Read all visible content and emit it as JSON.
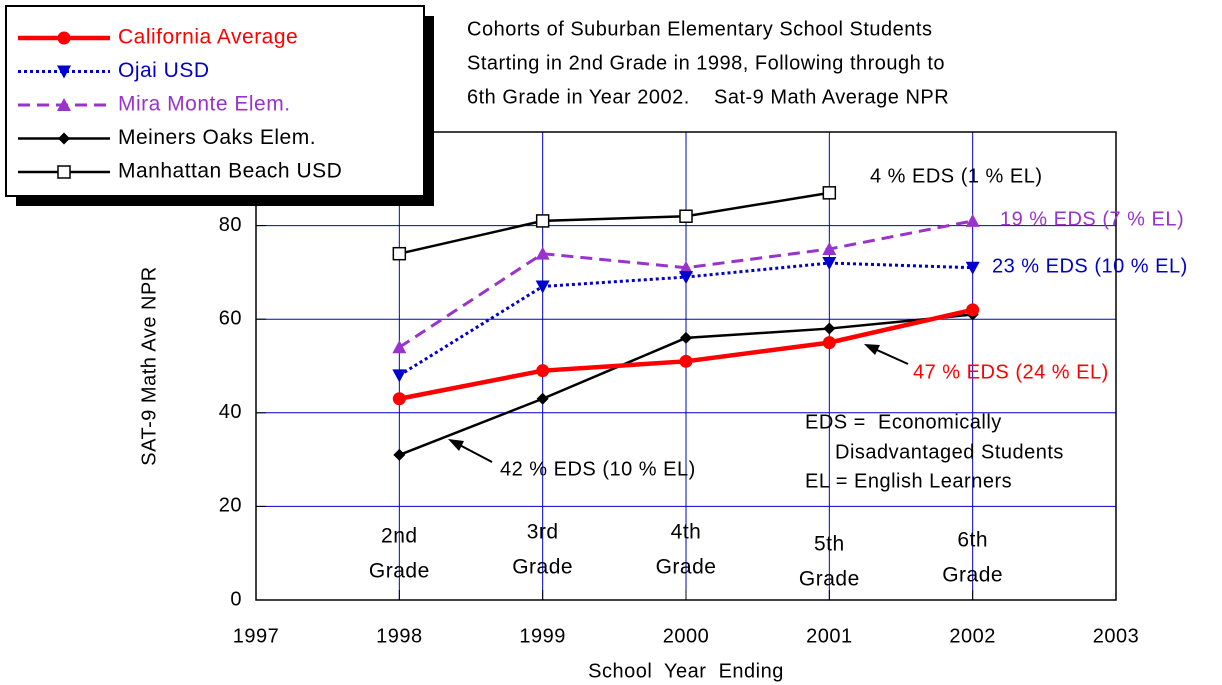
{
  "chart_data": {
    "type": "line",
    "title": [
      "Cohorts of Suburban Elementary School Students",
      "Starting in 2nd Grade in 1998, Following through to",
      "6th Grade in Year 2002.    Sat-9 Math Average NPR"
    ],
    "x_label": "School  Year  Ending",
    "y_label": "SAT-9 Math Ave NPR",
    "x": [
      1998,
      1999,
      2000,
      2001,
      2002
    ],
    "xlim": [
      1997,
      2003
    ],
    "xticks": [
      1997,
      1998,
      1999,
      2000,
      2001,
      2002,
      2003
    ],
    "ylim": [
      0,
      100
    ],
    "yticks": [
      0,
      20,
      40,
      60,
      80
    ],
    "grid": true,
    "grid_color": "#0000cc",
    "legend": "upper left",
    "series": [
      {
        "name": "California Average",
        "color": "#ff0000",
        "marker": "circle",
        "values": [
          43,
          49,
          51,
          55,
          62
        ]
      },
      {
        "name": "Ojai USD",
        "color": "#0000cc",
        "marker": "triangle-down",
        "values": [
          48,
          67,
          69,
          72,
          71
        ]
      },
      {
        "name": "Mira Monte Elem.",
        "color": "#9933cc",
        "marker": "triangle-up",
        "values": [
          54,
          74,
          71,
          75,
          81
        ]
      },
      {
        "name": "Meiners Oaks Elem.",
        "color": "#000000",
        "marker": "diamond",
        "values": [
          31,
          43,
          56,
          58,
          61
        ]
      },
      {
        "name": "Manhattan Beach USD",
        "color": "#000000",
        "marker": "square-open",
        "values": [
          74,
          81,
          82,
          87,
          null
        ]
      }
    ],
    "grade_labels": [
      [
        "2nd",
        "Grade"
      ],
      [
        "3rd",
        "Grade"
      ],
      [
        "4th",
        "Grade"
      ],
      [
        "5th",
        "Grade"
      ],
      [
        "6th",
        "Grade"
      ]
    ],
    "annotations": [
      {
        "text": "4 % EDS (1 % EL)",
        "color": "#000000"
      },
      {
        "text": "19 % EDS (7 % EL)",
        "color": "#9933cc"
      },
      {
        "text": "23 % EDS (10 % EL)",
        "color": "#0000cc"
      },
      {
        "text": "47 % EDS (24 % EL)",
        "color": "#ff0000"
      },
      {
        "text": "42 % EDS (10 % EL)",
        "color": "#000000"
      },
      {
        "text": "EDS =  Economically",
        "color": "#000000"
      },
      {
        "text": "Disadvantaged Students",
        "color": "#000000"
      },
      {
        "text": "EL = English Learners",
        "color": "#000000"
      }
    ]
  }
}
